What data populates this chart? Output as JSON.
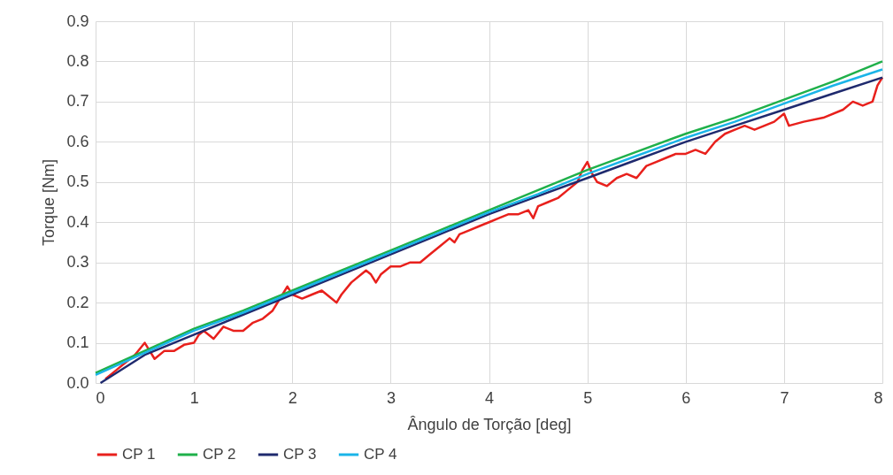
{
  "chart_data": {
    "type": "line",
    "xlabel": "Ângulo de Torção [deg]",
    "ylabel": "Torque [Nm]",
    "xlim": [
      0,
      8
    ],
    "xticks": [
      0,
      1,
      2,
      3,
      4,
      5,
      6,
      7,
      8
    ],
    "ylim": [
      0,
      0.9
    ],
    "yticks": [
      {
        "value": 0,
        "label": "0.0"
      },
      {
        "value": 0.1,
        "label": "0.1"
      },
      {
        "value": 0.2,
        "label": "0.2"
      },
      {
        "value": 0.3,
        "label": "0.3"
      },
      {
        "value": 0.4,
        "label": "0.4"
      },
      {
        "value": 0.5,
        "label": "0.5"
      },
      {
        "value": 0.6,
        "label": "0.6"
      },
      {
        "value": 0.7,
        "label": "0.7"
      },
      {
        "value": 0.8,
        "label": "0.8"
      },
      {
        "value": 0.9,
        "label": "0.9"
      }
    ],
    "grid": true,
    "legend": "bottom",
    "marker": "none",
    "line_style": "solid",
    "series": [
      {
        "name": "CP 1",
        "color": "#e8201c",
        "x": [
          0.1,
          0.2,
          0.3,
          0.4,
          0.5,
          0.55,
          0.6,
          0.7,
          0.8,
          0.9,
          1.0,
          1.05,
          1.1,
          1.2,
          1.3,
          1.4,
          1.5,
          1.6,
          1.7,
          1.8,
          1.9,
          1.95,
          2.0,
          2.1,
          2.2,
          2.3,
          2.4,
          2.45,
          2.5,
          2.6,
          2.7,
          2.75,
          2.8,
          2.85,
          2.9,
          3.0,
          3.1,
          3.2,
          3.3,
          3.4,
          3.5,
          3.6,
          3.65,
          3.7,
          3.8,
          3.9,
          4.0,
          4.1,
          4.2,
          4.3,
          4.4,
          4.45,
          4.5,
          4.6,
          4.7,
          4.8,
          4.9,
          4.95,
          5.0,
          5.05,
          5.1,
          5.2,
          5.3,
          5.4,
          5.5,
          5.6,
          5.7,
          5.8,
          5.9,
          6.0,
          6.1,
          6.2,
          6.3,
          6.4,
          6.5,
          6.6,
          6.7,
          6.8,
          6.9,
          7.0,
          7.05,
          7.2,
          7.4,
          7.6,
          7.7,
          7.8,
          7.9,
          7.95,
          8.0
        ],
        "values": [
          0.01,
          0.03,
          0.05,
          0.07,
          0.1,
          0.08,
          0.06,
          0.08,
          0.08,
          0.095,
          0.1,
          0.12,
          0.13,
          0.11,
          0.14,
          0.13,
          0.13,
          0.15,
          0.16,
          0.18,
          0.22,
          0.24,
          0.22,
          0.21,
          0.22,
          0.23,
          0.21,
          0.2,
          0.22,
          0.25,
          0.27,
          0.28,
          0.27,
          0.25,
          0.27,
          0.29,
          0.29,
          0.3,
          0.3,
          0.32,
          0.34,
          0.36,
          0.35,
          0.37,
          0.38,
          0.39,
          0.4,
          0.41,
          0.42,
          0.42,
          0.43,
          0.41,
          0.44,
          0.45,
          0.46,
          0.48,
          0.5,
          0.53,
          0.55,
          0.52,
          0.5,
          0.49,
          0.51,
          0.52,
          0.51,
          0.54,
          0.55,
          0.56,
          0.57,
          0.57,
          0.58,
          0.57,
          0.6,
          0.62,
          0.63,
          0.64,
          0.63,
          0.64,
          0.65,
          0.67,
          0.64,
          0.65,
          0.66,
          0.68,
          0.7,
          0.69,
          0.7,
          0.74,
          0.76
        ]
      },
      {
        "name": "CP 2",
        "color": "#1fb04a",
        "x": [
          0,
          0.5,
          1,
          1.5,
          2,
          2.5,
          3,
          3.5,
          4,
          4.5,
          5,
          5.5,
          6,
          6.5,
          7,
          7.5,
          8
        ],
        "values": [
          0.025,
          0.08,
          0.135,
          0.18,
          0.23,
          0.28,
          0.33,
          0.38,
          0.43,
          0.48,
          0.53,
          0.575,
          0.62,
          0.66,
          0.705,
          0.75,
          0.8
        ]
      },
      {
        "name": "CP 3",
        "color": "#1f2a6e",
        "x": [
          0.05,
          0.5,
          1,
          1.5,
          2,
          2.5,
          3,
          3.5,
          4,
          4.5,
          5,
          5.5,
          6,
          6.5,
          7,
          7.5,
          8
        ],
        "values": [
          0.0,
          0.07,
          0.12,
          0.17,
          0.22,
          0.27,
          0.32,
          0.37,
          0.42,
          0.465,
          0.51,
          0.555,
          0.6,
          0.64,
          0.68,
          0.72,
          0.76
        ]
      },
      {
        "name": "CP 4",
        "color": "#1ab4e8",
        "x": [
          0,
          0.5,
          1,
          1.5,
          2,
          2.5,
          3,
          3.5,
          4,
          4.5,
          5,
          5.5,
          6,
          6.5,
          7,
          7.5,
          8
        ],
        "values": [
          0.02,
          0.075,
          0.13,
          0.175,
          0.225,
          0.275,
          0.325,
          0.375,
          0.425,
          0.47,
          0.52,
          0.565,
          0.61,
          0.65,
          0.695,
          0.74,
          0.78
        ]
      }
    ]
  }
}
